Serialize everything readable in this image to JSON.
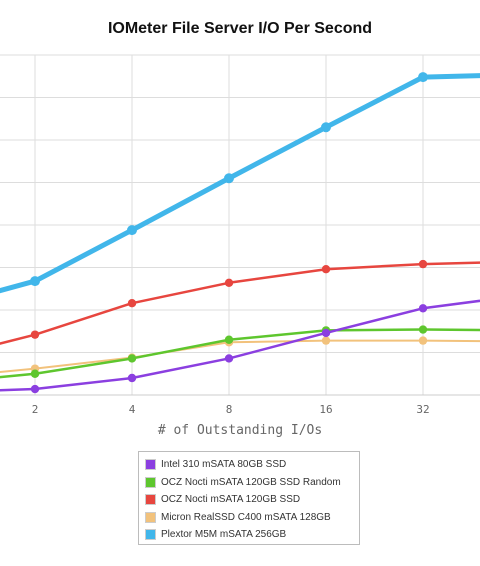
{
  "chart_data": {
    "type": "line",
    "title": "IOMeter File Server I/O Per Second",
    "xlabel": "# of Outstanding I/Os",
    "ylabel": "",
    "x_scale": "log2",
    "categories": [
      "1",
      "2",
      "4",
      "8",
      "16",
      "32",
      "64"
    ],
    "tick_labels": [
      "2",
      "4",
      "8",
      "16",
      "32"
    ],
    "grid": true,
    "legend_position": "bottom",
    "series": [
      {
        "name": "Intel 310 mSATA 80GB SSD",
        "color": "#8b3fe0",
        "values": [
          3,
          7,
          20,
          43,
          73,
          102,
          117
        ]
      },
      {
        "name": "OCZ Nocti mSATA 120GB SSD Random",
        "color": "#5ec62e",
        "values": [
          14,
          25,
          43,
          65,
          76,
          77,
          76
        ]
      },
      {
        "name": "OCZ Nocti mSATA 120GB SSD",
        "color": "#e7463f",
        "values": [
          42,
          71,
          108,
          132,
          148,
          154,
          157
        ]
      },
      {
        "name": "Micron RealSSD C400 mSATA 128GB",
        "color": "#f2c27c",
        "values": [
          20,
          31,
          44,
          62,
          64,
          64,
          63
        ]
      },
      {
        "name": "Plextor M5M mSATA 256GB",
        "color": "#41b6ea",
        "values": [
          103,
          134,
          194,
          255,
          315,
          374,
          377
        ]
      }
    ]
  }
}
